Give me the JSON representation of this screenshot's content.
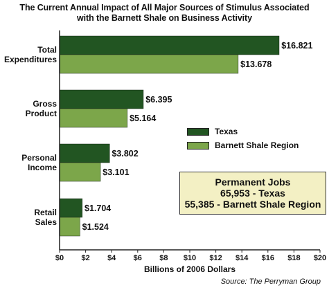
{
  "colors": {
    "texas": "#225522",
    "barnett": "#7ca64a",
    "box_bg": "#f3f0c4"
  },
  "jobs_box": {
    "title": "Permanent Jobs",
    "line1": "65,953 - Texas",
    "line2": "55,385 - Barnett Shale Region"
  },
  "source": "Source: The Perryman Group",
  "chart_data": {
    "type": "bar",
    "orientation": "horizontal",
    "title_line1": "The Current Annual Impact of All Major Sources of Stimulus Associated",
    "title_line2": "with the Barnett Shale on Business Activity",
    "xlabel": "Billions of 2006 Dollars",
    "xlim": [
      0,
      20
    ],
    "ticks": [
      "$0",
      "$2",
      "$4",
      "$6",
      "$8",
      "$10",
      "$12",
      "$14",
      "$16",
      "$18",
      "$20"
    ],
    "categories": [
      [
        "Total",
        "Expenditures"
      ],
      [
        "Gross",
        "Product"
      ],
      [
        "Personal",
        "Income"
      ],
      [
        "Retail",
        "Sales"
      ]
    ],
    "series": [
      {
        "name": "Texas",
        "values": [
          16.821,
          6.395,
          3.802,
          1.704
        ],
        "labels": [
          "$16.821",
          "$6.395",
          "$3.802",
          "$1.704"
        ]
      },
      {
        "name": "Barnett Shale Region",
        "values": [
          13.678,
          5.164,
          3.101,
          1.524
        ],
        "labels": [
          "$13.678",
          "$5.164",
          "$3.101",
          "$1.524"
        ]
      }
    ],
    "legend_position": "right-middle",
    "grid": false
  }
}
